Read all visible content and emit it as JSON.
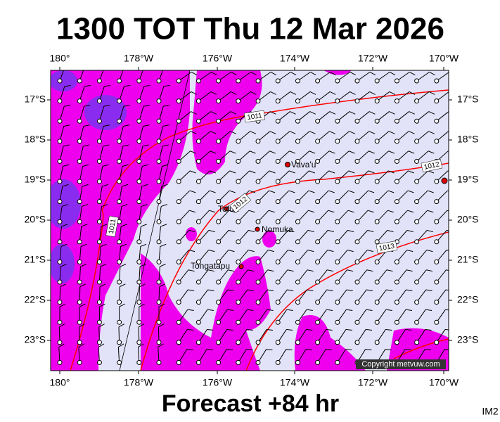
{
  "header": {
    "title": "1300 TOT Thu 12 Mar 2026"
  },
  "map": {
    "lon_labels": [
      "180°",
      "178°W",
      "176°W",
      "174°W",
      "172°W",
      "170°W"
    ],
    "lat_labels": [
      "17°S",
      "18°S",
      "19°S",
      "20°S",
      "21°S",
      "22°S",
      "23°S"
    ],
    "places": [
      "Vava'u",
      "Tofua",
      "Nomuka",
      "Tongatapu"
    ],
    "isobars": [
      "1011",
      "1012",
      "1012",
      "1011",
      "1013"
    ],
    "copyright": "Copyright metvuw.com"
  },
  "footer": {
    "forecast": "Forecast +84 hr",
    "code": "IM2"
  }
}
